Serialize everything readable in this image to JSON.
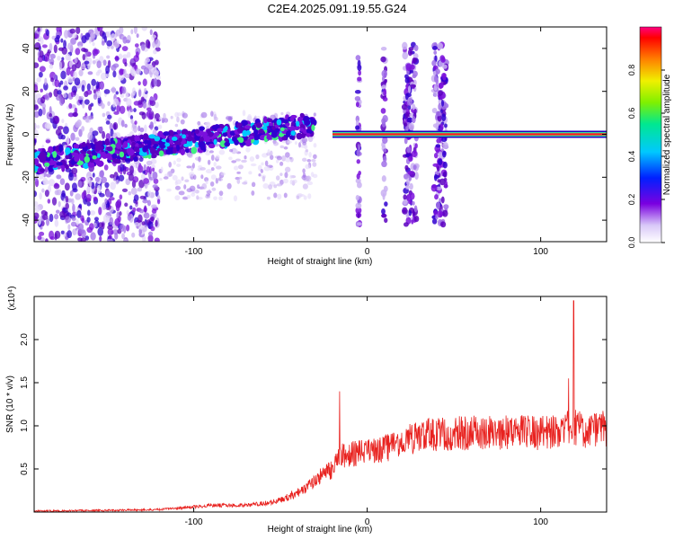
{
  "title": "C2E4.2025.091.19.55.G24",
  "colors": {
    "snr_line": "#e8221f",
    "spectro_low": "#c9b8f0",
    "spectro_mid": "#6a00cc",
    "spectro_hi": "#00c8ff",
    "ridge": "#ff2020"
  },
  "chart_data": [
    {
      "type": "heatmap",
      "xlabel": "Height of straight line (km)",
      "ylabel": "Frequency (Hz)",
      "xlim": [
        -192,
        138
      ],
      "ylim": [
        -50,
        50
      ],
      "x_ticks": [
        -100,
        0,
        100
      ],
      "y_ticks": [
        -40,
        -20,
        0,
        20,
        40
      ],
      "colorbar": {
        "label": "Normalized spectral amplitude",
        "range": [
          0,
          1
        ],
        "ticks": [
          "0.0",
          "0.2",
          "0.4",
          "0.6",
          "0.8"
        ],
        "tick_values": [
          0,
          0.2,
          0.4,
          0.6,
          0.8
        ]
      },
      "features": {
        "scatter_region_x": [
          -192,
          -120
        ],
        "ridge_rising": {
          "x": [
            -192,
            -30
          ],
          "freq": [
            -13,
            5
          ]
        },
        "ridge_flat": {
          "x": [
            -20,
            138
          ],
          "freq": 0
        },
        "bursts_x": [
          -5,
          10,
          25,
          42
        ]
      }
    },
    {
      "type": "line",
      "xlabel": "Height of straight line (km)",
      "ylabel": "SNR (10 * v/v)",
      "y_multiplier": "(x10⁴)",
      "xlim": [
        -192,
        138
      ],
      "ylim": [
        0,
        2.5
      ],
      "x_ticks": [
        -100,
        0,
        100
      ],
      "y_ticks": [
        0.5,
        1.0,
        1.5,
        2.0
      ],
      "y_tick_labels": [
        "0.5",
        "1.0",
        "1.5",
        "2.0"
      ],
      "series": [
        {
          "x": [
            -192,
            -150,
            -120,
            -110,
            -90,
            -70,
            -55,
            -45,
            -35,
            -25,
            -20,
            -15,
            -10,
            0,
            10,
            20,
            30,
            40,
            60,
            80,
            100,
            112,
            118,
            120,
            125,
            138
          ],
          "y": [
            0.02,
            0.03,
            0.04,
            0.06,
            0.1,
            0.1,
            0.14,
            0.22,
            0.35,
            0.55,
            0.6,
            0.8,
            0.82,
            0.85,
            0.9,
            1.0,
            1.08,
            1.1,
            1.12,
            1.13,
            1.12,
            1.15,
            1.2,
            1.2,
            1.15,
            1.18
          ],
          "spikes": [
            {
              "x": -16,
              "y": 1.4
            },
            {
              "x": 119,
              "y": 2.45
            },
            {
              "x": 116,
              "y": 1.55
            }
          ]
        }
      ]
    }
  ]
}
